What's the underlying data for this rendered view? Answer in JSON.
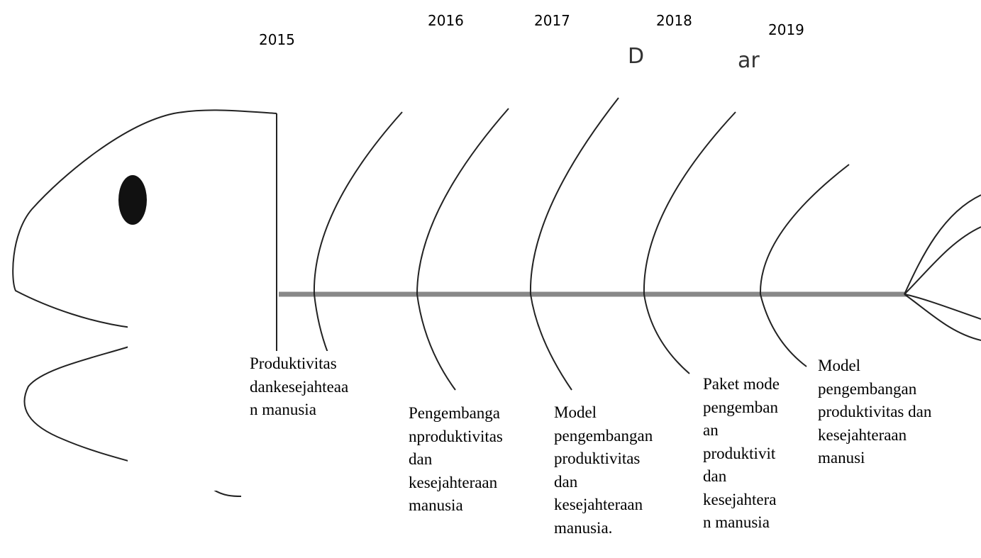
{
  "years": [
    "2015",
    "2016",
    "2017",
    "2018",
    "2019"
  ],
  "fragments": [
    "D",
    "ar"
  ],
  "boxes": [
    {
      "lines": [
        "Produktivitas",
        "dankesejahteaa",
        "n manusia"
      ]
    },
    {
      "lines": [
        "Pengembanga",
        "nproduktivitas",
        "dan",
        "kesejahteraan",
        "manusia"
      ]
    },
    {
      "lines": [
        "Model",
        "pengembangan",
        "produktivitas",
        "dan",
        "kesejahteraan",
        "manusia."
      ]
    },
    {
      "lines": [
        "Paket mode",
        "pengemban",
        "an",
        "produktivit",
        "dan",
        "kesejahtera",
        "n manusia"
      ]
    },
    {
      "lines": [
        "Model",
        "pengembangan",
        "produktivitas dan",
        "kesejahteraan",
        "manusi"
      ]
    }
  ]
}
